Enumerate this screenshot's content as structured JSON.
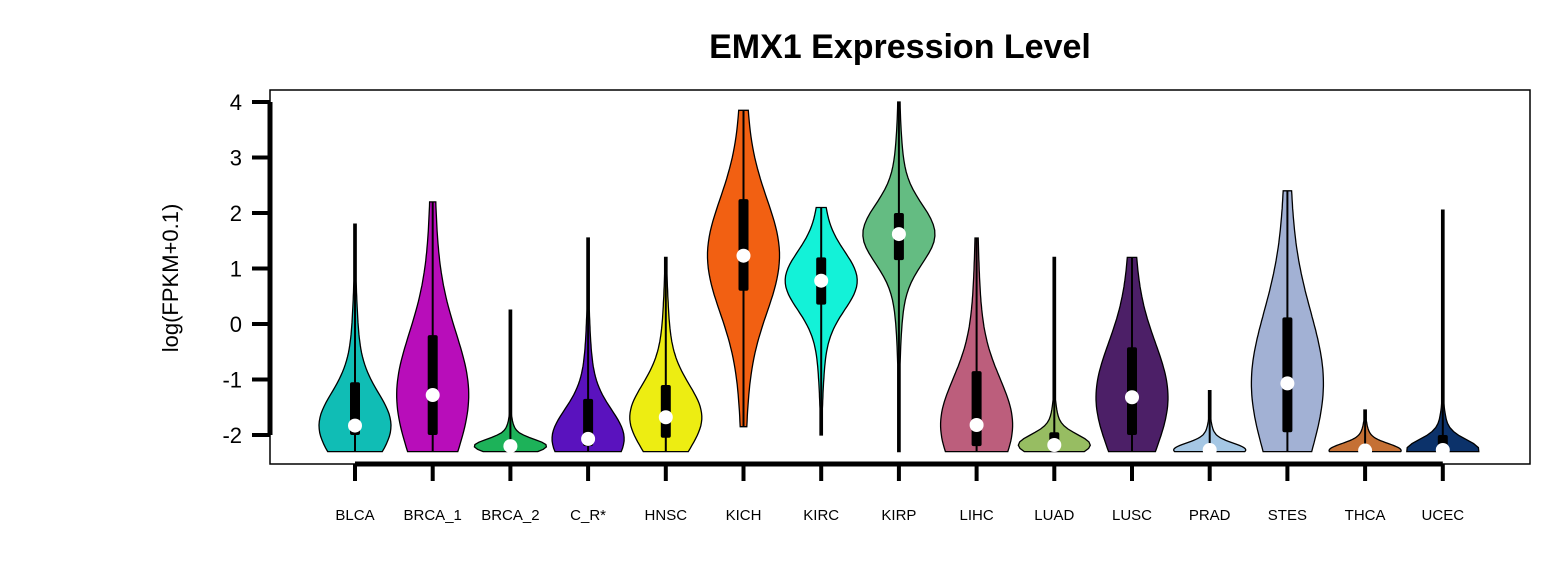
{
  "chart_data": {
    "type": "violin",
    "title": "EMX1 Expression Level",
    "xlabel": "",
    "ylabel": "log(FPKM+0.1)",
    "ylim": [
      -2.55,
      4.2
    ],
    "yticks": [
      -2,
      -1,
      0,
      1,
      2,
      3,
      4
    ],
    "legend": "none",
    "grid": false,
    "categories": [
      "BLCA",
      "BRCA_1",
      "BRCA_2",
      "C_R*",
      "HNSC",
      "KICH",
      "KIRC",
      "KIRP",
      "LIHC",
      "LUAD",
      "LUSC",
      "PRAD",
      "STES",
      "THCA",
      "UCEC"
    ],
    "colors": [
      "#10BDB5",
      "#B80DBA",
      "#1DB259",
      "#5A12BE",
      "#EDED12",
      "#F26012",
      "#13F2D8",
      "#64BC82",
      "#BC5E7C",
      "#97BD62",
      "#4C1F67",
      "#A5C7E4",
      "#A2B1D4",
      "#C57034",
      "#0C326A"
    ],
    "series": [
      {
        "category": "BLCA",
        "min": -2.3,
        "max": 1.8,
        "q1": -2.0,
        "median": -1.83,
        "q3": -1.05
      },
      {
        "category": "BRCA_1",
        "min": -2.3,
        "max": 2.2,
        "q1": -2.0,
        "median": -1.28,
        "q3": -0.2
      },
      {
        "category": "BRCA_2",
        "min": -2.3,
        "max": 0.25,
        "q1": -2.25,
        "median": -2.2,
        "q3": -2.1
      },
      {
        "category": "C_R*",
        "min": -2.3,
        "max": 1.55,
        "q1": -2.2,
        "median": -2.07,
        "q3": -1.35
      },
      {
        "category": "HNSC",
        "min": -2.3,
        "max": 1.2,
        "q1": -2.05,
        "median": -1.68,
        "q3": -1.1
      },
      {
        "category": "KICH",
        "min": -1.85,
        "max": 3.85,
        "q1": 0.6,
        "median": 1.23,
        "q3": 2.25
      },
      {
        "category": "KIRC",
        "min": -2.0,
        "max": 2.1,
        "q1": 0.35,
        "median": 0.78,
        "q3": 1.2
      },
      {
        "category": "KIRP",
        "min": -2.3,
        "max": 4.0,
        "q1": 1.15,
        "median": 1.62,
        "q3": 2.0
      },
      {
        "category": "LIHC",
        "min": -2.3,
        "max": 1.55,
        "q1": -2.2,
        "median": -1.82,
        "q3": -0.85
      },
      {
        "category": "LUAD",
        "min": -2.3,
        "max": 1.2,
        "q1": -2.25,
        "median": -2.18,
        "q3": -1.95
      },
      {
        "category": "LUSC",
        "min": -2.3,
        "max": 1.2,
        "q1": -2.0,
        "median": -1.32,
        "q3": -0.42
      },
      {
        "category": "PRAD",
        "min": -2.3,
        "max": -1.2,
        "q1": -2.3,
        "median": -2.27,
        "q3": -2.2
      },
      {
        "category": "STES",
        "min": -2.3,
        "max": 2.4,
        "q1": -1.95,
        "median": -1.07,
        "q3": 0.12
      },
      {
        "category": "THCA",
        "min": -2.3,
        "max": -1.55,
        "q1": -2.3,
        "median": -2.28,
        "q3": -2.25
      },
      {
        "category": "UCEC",
        "min": -2.3,
        "max": 2.05,
        "q1": -2.3,
        "median": -2.27,
        "q3": -2.0
      }
    ]
  }
}
